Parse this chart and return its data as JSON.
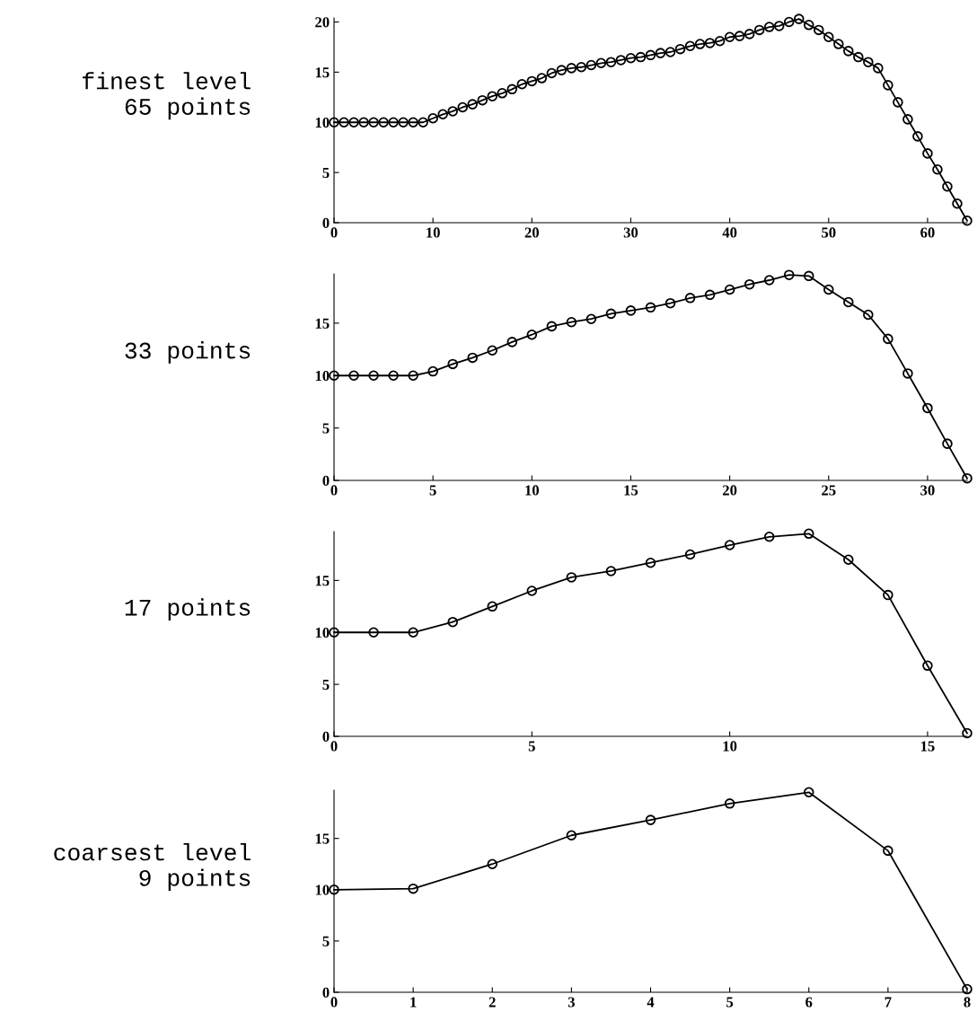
{
  "chart_data": [
    {
      "type": "line",
      "title": "finest level\n65 points",
      "marker": "circle",
      "line_style": "solid",
      "grid": false,
      "xlim": [
        0,
        64
      ],
      "xticks": [
        0,
        10,
        20,
        30,
        40,
        50,
        60
      ],
      "ylim": [
        0,
        20.4
      ],
      "yticks": [
        0,
        5,
        10,
        15,
        20
      ],
      "series": [
        {
          "color": "#000000",
          "x": [
            0,
            1,
            2,
            3,
            4,
            5,
            6,
            7,
            8,
            9,
            10,
            11,
            12,
            13,
            14,
            15,
            16,
            17,
            18,
            19,
            20,
            21,
            22,
            23,
            24,
            25,
            26,
            27,
            28,
            29,
            30,
            31,
            32,
            33,
            34,
            35,
            36,
            37,
            38,
            39,
            40,
            41,
            42,
            43,
            44,
            45,
            46,
            47,
            48,
            49,
            50,
            51,
            52,
            53,
            54,
            55,
            56,
            57,
            58,
            59,
            60,
            61,
            62,
            63,
            64
          ],
          "values": [
            10,
            10,
            10,
            10,
            10,
            10,
            10,
            10,
            10,
            10,
            10.4,
            10.8,
            11.1,
            11.5,
            11.8,
            12.2,
            12.6,
            12.9,
            13.3,
            13.8,
            14.1,
            14.4,
            14.9,
            15.2,
            15.4,
            15.5,
            15.7,
            15.9,
            16.0,
            16.2,
            16.4,
            16.5,
            16.7,
            16.9,
            17.0,
            17.3,
            17.6,
            17.8,
            17.9,
            18.1,
            18.5,
            18.6,
            18.8,
            19.2,
            19.5,
            19.6,
            20.0,
            20.3,
            19.7,
            19.2,
            18.5,
            17.8,
            17.1,
            16.5,
            16.0,
            15.4,
            13.7,
            12.0,
            10.3,
            8.6,
            6.9,
            5.3,
            3.6,
            1.9,
            0.2
          ]
        }
      ]
    },
    {
      "type": "line",
      "title": "33 points",
      "marker": "circle",
      "line_style": "solid",
      "grid": false,
      "xlim": [
        0,
        32
      ],
      "xticks": [
        0,
        5,
        10,
        15,
        20,
        25,
        30
      ],
      "ylim": [
        0,
        19.7
      ],
      "yticks": [
        0,
        5,
        10,
        15
      ],
      "series": [
        {
          "color": "#000000",
          "x": [
            0,
            1,
            2,
            3,
            4,
            5,
            6,
            7,
            8,
            9,
            10,
            11,
            12,
            13,
            14,
            15,
            16,
            17,
            18,
            19,
            20,
            21,
            22,
            23,
            24,
            25,
            26,
            27,
            28,
            29,
            30,
            31,
            32
          ],
          "values": [
            10,
            10,
            10,
            10,
            10,
            10.4,
            11.1,
            11.7,
            12.4,
            13.2,
            13.9,
            14.7,
            15.1,
            15.4,
            15.9,
            16.2,
            16.5,
            16.9,
            17.4,
            17.7,
            18.2,
            18.7,
            19.1,
            19.6,
            19.5,
            18.2,
            17.0,
            15.8,
            13.5,
            10.2,
            6.9,
            3.5,
            0.2
          ]
        }
      ]
    },
    {
      "type": "line",
      "title": "17 points",
      "marker": "circle",
      "line_style": "solid",
      "grid": false,
      "xlim": [
        0,
        16
      ],
      "xticks": [
        0,
        5,
        10,
        15
      ],
      "ylim": [
        0,
        19.7
      ],
      "yticks": [
        0,
        5,
        10,
        15
      ],
      "series": [
        {
          "color": "#000000",
          "x": [
            0,
            1,
            2,
            3,
            4,
            5,
            6,
            7,
            8,
            9,
            10,
            11,
            12,
            13,
            14,
            15,
            16
          ],
          "values": [
            10,
            10,
            10,
            11,
            12.5,
            14,
            15.3,
            15.9,
            16.7,
            17.5,
            18.4,
            19.2,
            19.5,
            17.0,
            13.6,
            6.8,
            0.3
          ]
        }
      ]
    },
    {
      "type": "line",
      "title": "coarsest level\n9 points",
      "marker": "circle",
      "line_style": "solid",
      "grid": false,
      "xlim": [
        0,
        8
      ],
      "xticks": [
        0,
        1,
        2,
        3,
        4,
        5,
        6,
        7,
        8
      ],
      "ylim": [
        0,
        19.7
      ],
      "yticks": [
        0,
        5,
        10,
        15
      ],
      "series": [
        {
          "color": "#000000",
          "x": [
            0,
            1,
            2,
            3,
            4,
            5,
            6,
            7,
            8
          ],
          "values": [
            10,
            10.1,
            12.5,
            15.3,
            16.8,
            18.4,
            19.5,
            13.8,
            0.3
          ]
        }
      ]
    }
  ]
}
